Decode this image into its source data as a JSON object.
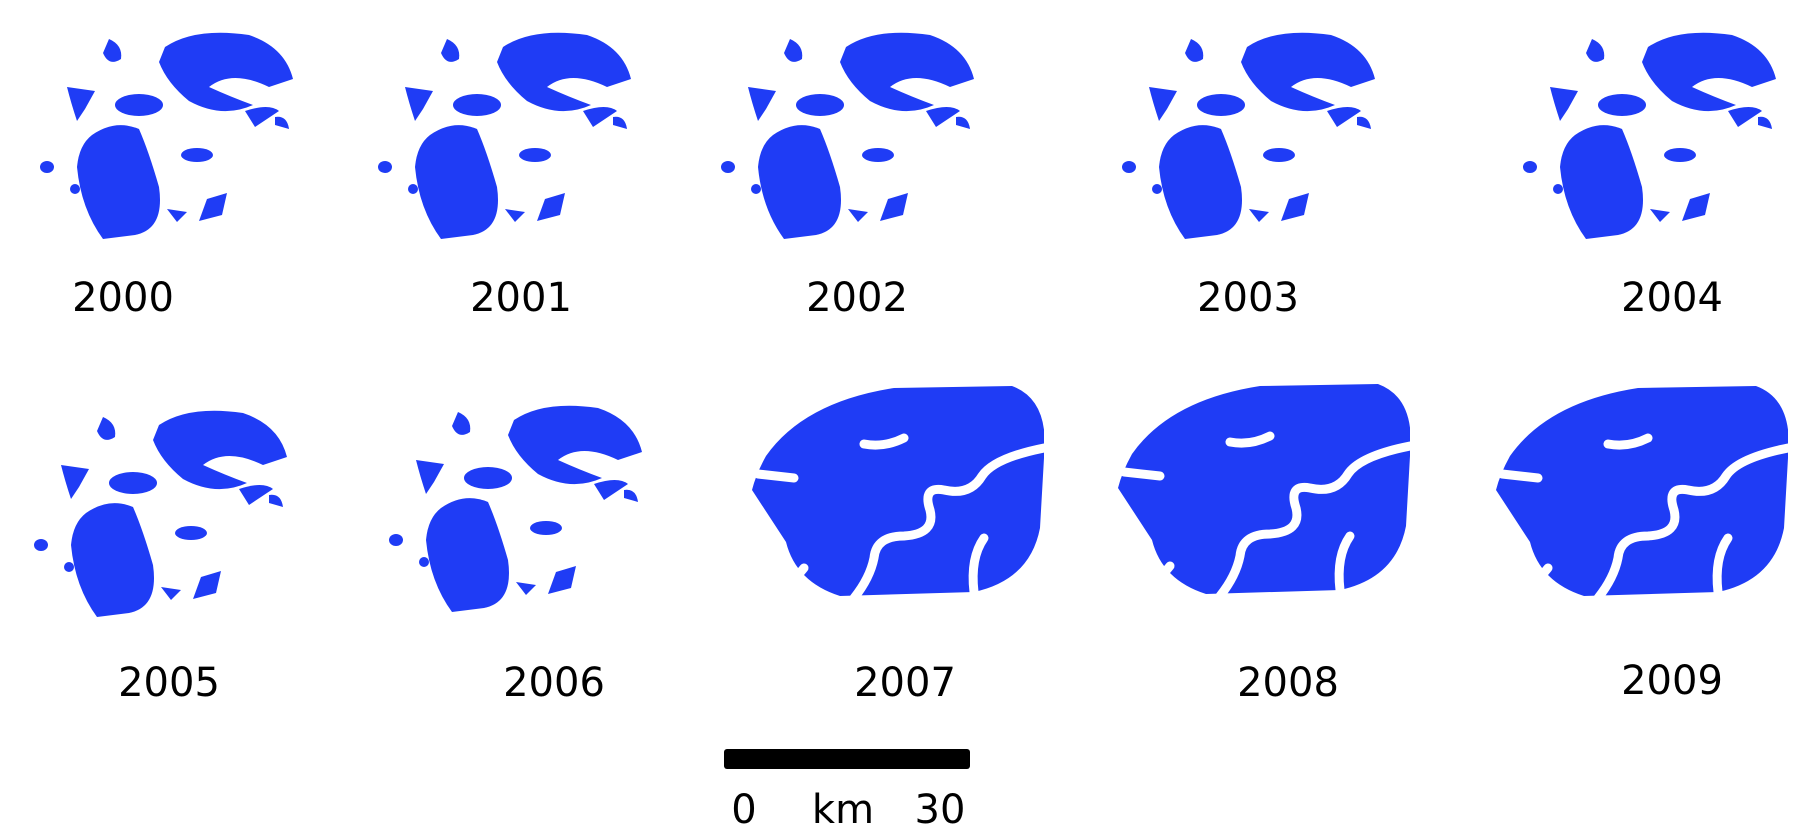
{
  "panels": [
    {
      "label": "2000"
    },
    {
      "label": "2001"
    },
    {
      "label": "2002"
    },
    {
      "label": "2003"
    },
    {
      "label": "2004"
    },
    {
      "label": "2005"
    },
    {
      "label": "2006"
    },
    {
      "label": "2007"
    },
    {
      "label": "2008"
    },
    {
      "label": "2009"
    }
  ],
  "scale_bar": {
    "start": "0",
    "unit": "km",
    "end": "30"
  }
}
